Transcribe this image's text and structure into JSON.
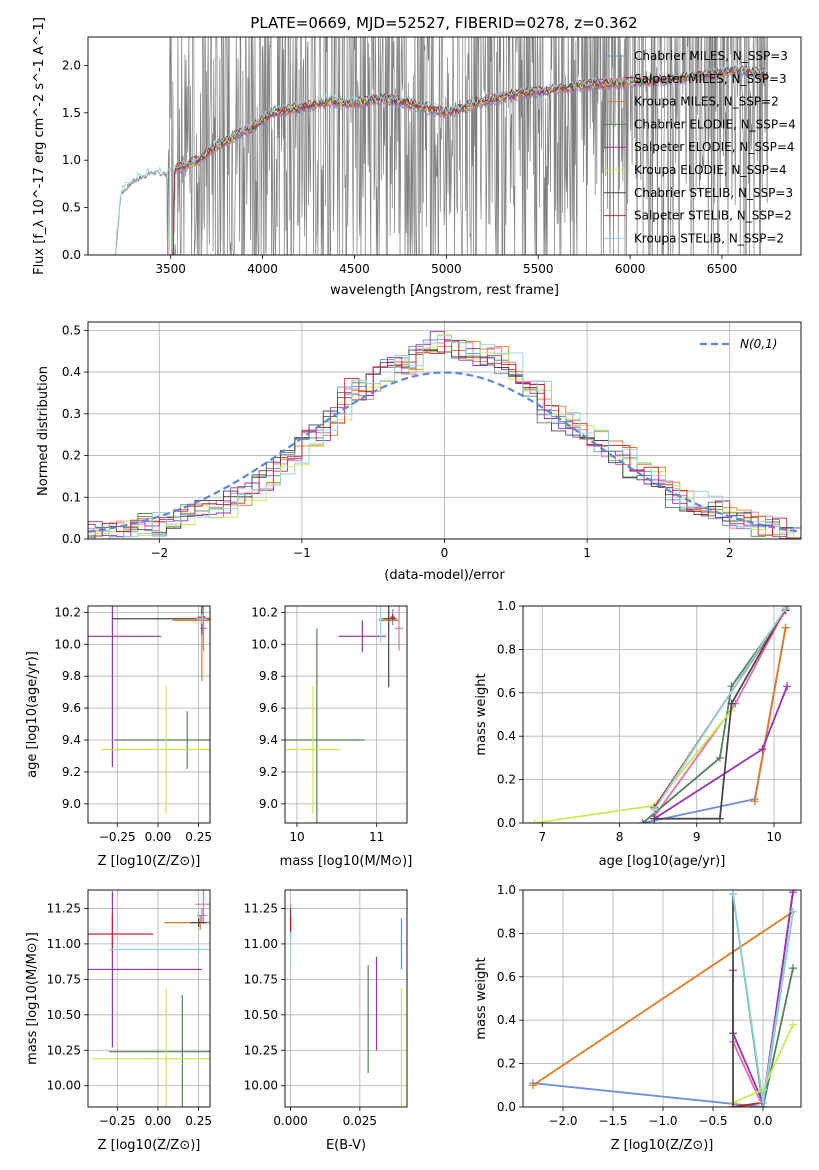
{
  "figure_title": "PLATE=0669, MJD=52527, FIBERID=0278, z=0.362",
  "colors": {
    "data_line": "#7f7f7f",
    "series": [
      "#6a8fdb",
      "#e66fae",
      "#e07b2a",
      "#55805a",
      "#9931b5",
      "#c7eb52",
      "#484848",
      "#c0282e",
      "#8ed3de"
    ],
    "normal_curve": "#5d87d7"
  },
  "chart_data": [
    {
      "id": "spectrum",
      "type": "line",
      "title": "PLATE=0669, MJD=52527, FIBERID=0278, z=0.362",
      "xlabel": "wavelength [Angstrom, rest frame]",
      "ylabel": "Flux [f_λ 10^-17 erg cm^-2 s^-1 A^-1]",
      "xlim": [
        3050,
        6930
      ],
      "ylim": [
        0,
        2.3
      ],
      "xticks": [
        3500,
        4000,
        4500,
        5000,
        5500,
        6000,
        6500
      ],
      "yticks": [
        0.0,
        0.5,
        1.0,
        1.5,
        2.0
      ],
      "grid": false,
      "legend_position": "top-right",
      "legend": [
        "Chabrier MILES, N_SSP=3",
        "Salpeter MILES, N_SSP=3",
        "Kroupa MILES, N_SSP=2",
        "Chabrier ELODIE, N_SSP=4",
        "Salpeter ELODIE, N_SSP=4",
        "Kroupa ELODIE, N_SSP=4",
        "Chabrier STELIB, N_SSP=3",
        "Salpeter STELIB, N_SSP=2",
        "Kroupa STELIB, N_SSP=2"
      ],
      "data_envelope": {
        "x": [
          3200,
          3230,
          3300,
          3400,
          3480,
          3550,
          3650,
          3750,
          3850,
          3950,
          4050,
          4200,
          4350,
          4500,
          4650,
          4800,
          5000,
          5200,
          5400,
          5600,
          5800,
          6000,
          6200,
          6400,
          6600,
          6750
        ],
        "y": [
          0.0,
          0.65,
          0.78,
          0.87,
          0.85,
          0.92,
          1.0,
          1.15,
          1.25,
          1.35,
          1.5,
          1.55,
          1.62,
          1.6,
          1.65,
          1.6,
          1.5,
          1.62,
          1.7,
          1.75,
          1.8,
          1.82,
          1.85,
          1.9,
          1.95,
          1.9
        ]
      },
      "model_x_start": 3490
    },
    {
      "id": "residuals",
      "type": "line",
      "xlabel": "(data-model)/error",
      "ylabel": "Normed distribution",
      "xlim": [
        -2.5,
        2.5
      ],
      "ylim": [
        0,
        0.52
      ],
      "xticks": [
        -2,
        -1,
        0,
        1,
        2
      ],
      "yticks": [
        0.0,
        0.1,
        0.2,
        0.3,
        0.4,
        0.5
      ],
      "grid": true,
      "legend_position": "top-right",
      "legend": [
        "N(0,1)"
      ],
      "bin_edges": [
        -2.5,
        -2.4,
        -2.3,
        -2.2,
        -2.1,
        -2.0,
        -1.9,
        -1.8,
        -1.7,
        -1.6,
        -1.5,
        -1.4,
        -1.3,
        -1.2,
        -1.1,
        -1.0,
        -0.9,
        -0.8,
        -0.7,
        -0.6,
        -0.5,
        -0.4,
        -0.3,
        -0.2,
        -0.1,
        0.0,
        0.1,
        0.2,
        0.3,
        0.4,
        0.5,
        0.6,
        0.7,
        0.8,
        0.9,
        1.0,
        1.1,
        1.2,
        1.3,
        1.4,
        1.5,
        1.6,
        1.7,
        1.8,
        1.9,
        2.0,
        2.1,
        2.2,
        2.3,
        2.4,
        2.5
      ],
      "hist_base": [
        0.02,
        0.02,
        0.02,
        0.03,
        0.04,
        0.03,
        0.05,
        0.06,
        0.07,
        0.07,
        0.1,
        0.11,
        0.14,
        0.17,
        0.2,
        0.24,
        0.26,
        0.3,
        0.36,
        0.35,
        0.4,
        0.42,
        0.41,
        0.44,
        0.47,
        0.46,
        0.44,
        0.45,
        0.44,
        0.42,
        0.38,
        0.36,
        0.3,
        0.28,
        0.26,
        0.24,
        0.22,
        0.2,
        0.17,
        0.15,
        0.12,
        0.1,
        0.09,
        0.08,
        0.07,
        0.05,
        0.04,
        0.03,
        0.025,
        0.02
      ]
    },
    {
      "id": "age-vs-Z",
      "type": "scatter",
      "xlabel": "Z [log10(Z/Z⊙)]",
      "ylabel": "age [log10(age/yr)]",
      "xlim": [
        -0.43,
        0.32
      ],
      "ylim": [
        8.88,
        10.24
      ],
      "xticks": [
        -0.25,
        0.0,
        0.25
      ],
      "xticklabels": [
        "−0.25",
        "0.00",
        "0.25"
      ],
      "yticks": [
        9.0,
        9.2,
        9.4,
        9.6,
        9.8,
        10.0,
        10.2
      ],
      "grid": true,
      "crosses": [
        {
          "series": 0,
          "x": 0.27,
          "y": 10.17,
          "xerr": 0.03,
          "yerr": 0.05
        },
        {
          "series": 1,
          "x": 0.28,
          "y": 10.1,
          "xerr": 0.02,
          "yerr": 0.14
        },
        {
          "series": 2,
          "x": 0.27,
          "y": 10.15,
          "xerr": 0.18,
          "yerr": 0.38
        },
        {
          "series": 3,
          "x": 0.18,
          "y": 9.4,
          "xerr": 0.45,
          "yerr": 0.18
        },
        {
          "series": 4,
          "x": -0.28,
          "y": 10.05,
          "xerr": 0.3,
          "yerr": 0.82
        },
        {
          "series": 5,
          "x": 0.05,
          "y": 9.34,
          "xerr": 0.4,
          "yerr": 0.4
        },
        {
          "series": 6,
          "x": 0.27,
          "y": 10.16,
          "xerr": 0.55,
          "yerr": 0.1
        },
        {
          "series": 7,
          "x": 0.27,
          "y": 10.17,
          "xerr": 0.02,
          "yerr": 0.02
        },
        {
          "series": 8,
          "x": 0.27,
          "y": 10.16,
          "xerr": 0.03,
          "yerr": 0.03
        }
      ]
    },
    {
      "id": "age-vs-mass",
      "type": "scatter",
      "xlabel": "mass [log10(M/M⊙)]",
      "ylabel": "",
      "xlim": [
        9.85,
        11.38
      ],
      "ylim": [
        8.88,
        10.24
      ],
      "xticks": [
        10,
        11
      ],
      "yticks": [
        9.0,
        9.2,
        9.4,
        9.6,
        9.8,
        10.0,
        10.2
      ],
      "grid": true,
      "crosses": [
        {
          "series": 0,
          "x": 11.2,
          "y": 10.17,
          "xerr": 0.03,
          "yerr": 0.05
        },
        {
          "series": 1,
          "x": 11.28,
          "y": 10.1,
          "xerr": 0.05,
          "yerr": 0.14
        },
        {
          "series": 2,
          "x": 11.15,
          "y": 10.15,
          "xerr": 0.12,
          "yerr": 0.05
        },
        {
          "series": 3,
          "x": 10.25,
          "y": 9.4,
          "xerr": 0.6,
          "yerr": 0.7
        },
        {
          "series": 4,
          "x": 10.82,
          "y": 10.05,
          "xerr": 0.3,
          "yerr": 0.1
        },
        {
          "series": 5,
          "x": 10.2,
          "y": 9.34,
          "xerr": 0.35,
          "yerr": 0.4
        },
        {
          "series": 6,
          "x": 11.15,
          "y": 10.16,
          "xerr": 0.1,
          "yerr": 0.43
        },
        {
          "series": 7,
          "x": 11.2,
          "y": 10.17,
          "xerr": 0.03,
          "yerr": 0.02
        },
        {
          "series": 8,
          "x": 11.05,
          "y": 10.16,
          "xerr": 0.03,
          "yerr": 0.15
        }
      ]
    },
    {
      "id": "massweight-vs-age",
      "type": "line",
      "xlabel": "age [log10(age/yr)]",
      "ylabel": "mass weight",
      "xlim": [
        6.75,
        10.35
      ],
      "ylim": [
        0,
        1.0
      ],
      "xticks": [
        7,
        8,
        9,
        10
      ],
      "yticks": [
        0.0,
        0.2,
        0.4,
        0.6,
        0.8,
        1.0
      ],
      "grid": true,
      "series": [
        {
          "x": [
            8.3,
            9.75,
            10.15
          ],
          "y": [
            0.0,
            0.11,
            0.9
          ]
        },
        {
          "x": [
            8.45,
            9.5,
            10.17
          ],
          "y": [
            0.03,
            0.55,
            1.0
          ]
        },
        {
          "x": [
            9.75,
            10.15
          ],
          "y": [
            0.1,
            0.9
          ]
        },
        {
          "x": [
            8.3,
            9.3,
            9.45,
            10.15
          ],
          "y": [
            0.0,
            0.3,
            0.63,
            0.98
          ]
        },
        {
          "x": [
            8.45,
            9.85,
            10.17
          ],
          "y": [
            0.02,
            0.34,
            0.63
          ]
        },
        {
          "x": [
            6.9,
            8.45,
            9.45
          ],
          "y": [
            0.0,
            0.08,
            0.52
          ]
        },
        {
          "x": [
            8.45,
            9.3,
            9.45,
            10.15
          ],
          "y": [
            0.02,
            0.02,
            0.55,
            0.99
          ]
        },
        {
          "x": [
            8.45,
            10.15
          ],
          "y": [
            0.07,
            0.98
          ]
        },
        {
          "x": [
            8.45,
            10.15
          ],
          "y": [
            0.06,
            0.99
          ]
        }
      ]
    },
    {
      "id": "mass-vs-Z",
      "type": "scatter",
      "xlabel": "Z [log10(Z/Z⊙)]",
      "ylabel": "mass [log10(M/M⊙)]",
      "xlim": [
        -0.43,
        0.32
      ],
      "ylim": [
        9.85,
        11.38
      ],
      "xticks": [
        -0.25,
        0.0,
        0.25
      ],
      "xticklabels": [
        "−0.25",
        "0.00",
        "0.25"
      ],
      "yticks": [
        10.0,
        10.25,
        10.5,
        10.75,
        11.0,
        11.25
      ],
      "yticklabels": [
        "10.00",
        "10.25",
        "10.50",
        "10.75",
        "11.00",
        "11.25"
      ],
      "grid": true,
      "crosses": [
        {
          "series": 0,
          "x": 0.27,
          "y": 11.2,
          "xerr": 0.03,
          "yerr": 0.05
        },
        {
          "series": 1,
          "x": 0.28,
          "y": 11.28,
          "xerr": 0.05,
          "yerr": 0.14
        },
        {
          "series": 2,
          "x": 0.26,
          "y": 11.15,
          "xerr": 0.22,
          "yerr": 0.05
        },
        {
          "series": 3,
          "x": 0.15,
          "y": 10.24,
          "xerr": 0.45,
          "yerr": 0.4
        },
        {
          "series": 4,
          "x": -0.28,
          "y": 10.82,
          "xerr": 0.55,
          "yerr": 0.55
        },
        {
          "series": 5,
          "x": 0.05,
          "y": 10.19,
          "xerr": 0.45,
          "yerr": 0.5
        },
        {
          "series": 6,
          "x": 0.25,
          "y": 11.15,
          "xerr": 0.05,
          "yerr": 0.03
        },
        {
          "series": 7,
          "x": -0.28,
          "y": 11.07,
          "xerr": 0.25,
          "yerr": 0.13
        },
        {
          "series": 8,
          "x": 0.25,
          "y": 10.96,
          "xerr": 0.55,
          "yerr": 0.03
        }
      ]
    },
    {
      "id": "mass-vs-EBV",
      "type": "scatter",
      "xlabel": "E(B-V)",
      "ylabel": "",
      "xlim": [
        -0.002,
        0.042
      ],
      "ylim": [
        9.85,
        11.38
      ],
      "xticks": [
        0.0,
        0.025
      ],
      "xticklabels": [
        "0.000",
        "0.025"
      ],
      "yticks": [
        10.0,
        10.25,
        10.5,
        10.75,
        11.0,
        11.25
      ],
      "yticklabels": [
        "10.00",
        "10.25",
        "10.50",
        "10.75",
        "11.00",
        "11.25"
      ],
      "grid": true,
      "crosses": [
        {
          "series": 0,
          "x": 0.04,
          "y": 11.0,
          "xerr": 0.0,
          "yerr": 0.18
        },
        {
          "series": 1,
          "x": 0.0,
          "y": 11.2,
          "xerr": 0.0,
          "yerr": 0.08
        },
        {
          "series": 2,
          "x": 0.0,
          "y": 11.15,
          "xerr": 0.0,
          "yerr": 0.05
        },
        {
          "series": 3,
          "x": 0.028,
          "y": 10.47,
          "xerr": 0.0,
          "yerr": 0.38
        },
        {
          "series": 4,
          "x": 0.031,
          "y": 10.58,
          "xerr": 0.0,
          "yerr": 0.33
        },
        {
          "series": 5,
          "x": 0.04,
          "y": 10.19,
          "xerr": 0.0,
          "yerr": 0.5
        },
        {
          "series": 6,
          "x": 0.0,
          "y": 11.15,
          "xerr": 0.0,
          "yerr": 0.1
        },
        {
          "series": 7,
          "x": 0.0,
          "y": 11.12,
          "xerr": 0.0,
          "yerr": 0.08
        },
        {
          "series": 8,
          "x": 0.0,
          "y": 10.96,
          "xerr": 0.0,
          "yerr": 0.12
        }
      ]
    },
    {
      "id": "massweight-vs-Z",
      "type": "line",
      "xlabel": "Z [log10(Z/Z⊙)]",
      "ylabel": "mass weight",
      "xlim": [
        -2.4,
        0.38
      ],
      "ylim": [
        0,
        1.0
      ],
      "xticks": [
        -2.0,
        -1.5,
        -1.0,
        -0.5,
        0.0
      ],
      "xticklabels": [
        "−2.0",
        "−1.5",
        "−1.0",
        "−0.5",
        "0.0"
      ],
      "yticks": [
        0.0,
        0.2,
        0.4,
        0.6,
        0.8,
        1.0
      ],
      "grid": true,
      "series": [
        {
          "x": [
            -2.3,
            0.0,
            0.3
          ],
          "y": [
            0.11,
            0.0,
            0.9
          ]
        },
        {
          "x": [
            -0.3,
            0.0,
            0.3
          ],
          "y": [
            0.3,
            0.0,
            1.0
          ]
        },
        {
          "x": [
            -2.3,
            0.3
          ],
          "y": [
            0.1,
            0.9
          ]
        },
        {
          "x": [
            -0.3,
            0.0,
            0.3
          ],
          "y": [
            0.98,
            0.0,
            0.64
          ]
        },
        {
          "x": [
            -0.3,
            -0.3,
            0.0,
            0.3
          ],
          "y": [
            0.63,
            0.34,
            0.02,
            0.99
          ]
        },
        {
          "x": [
            -0.3,
            0.0,
            0.3
          ],
          "y": [
            0.02,
            0.08,
            0.38
          ]
        },
        {
          "x": [
            -0.3,
            -0.3,
            0.0
          ],
          "y": [
            0.98,
            0.0,
            0.02
          ]
        },
        {
          "x": [
            -0.3,
            0.0
          ],
          "y": [
            0.0,
            0.02
          ]
        },
        {
          "x": [
            -0.3,
            0.0,
            0.3
          ],
          "y": [
            0.98,
            0.02,
            0.9
          ]
        }
      ]
    }
  ]
}
